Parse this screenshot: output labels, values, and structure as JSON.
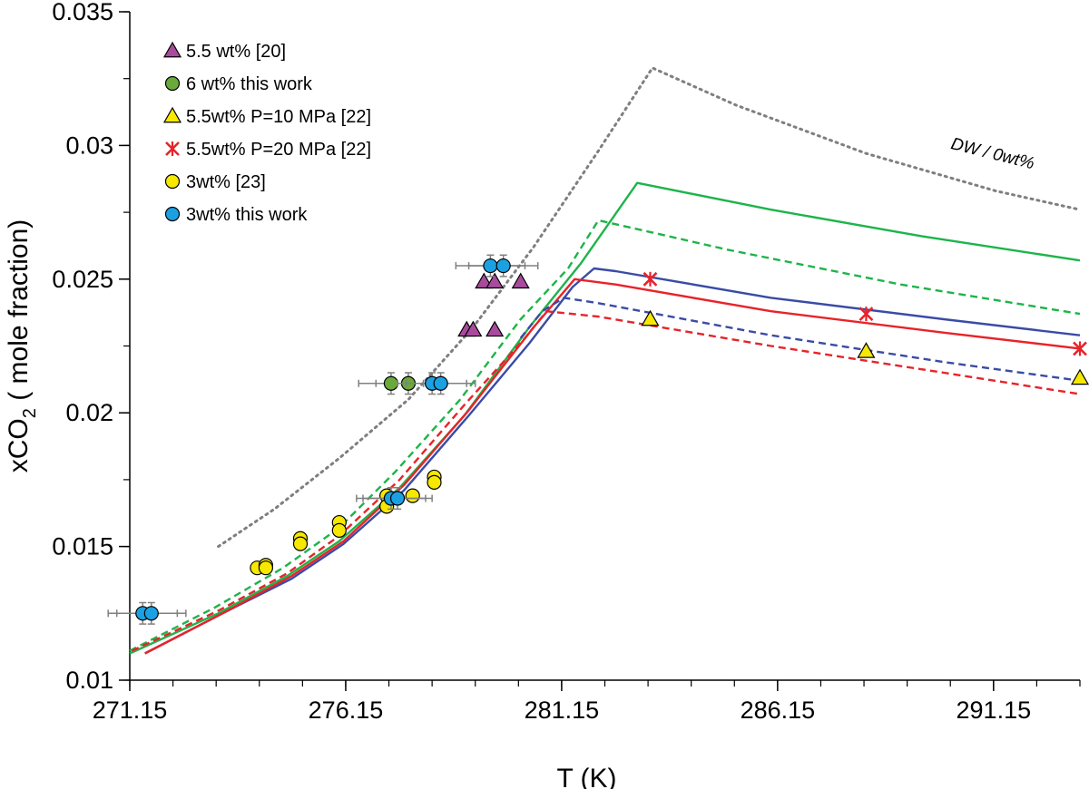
{
  "chart_data": {
    "type": "scatter",
    "xlabel": "T (K)",
    "ylabel_main": "xCO",
    "ylabel_sub": "2",
    "ylabel_rest": " ( mole fraction)",
    "xlim": [
      271.15,
      293.15
    ],
    "ylim": [
      0.01,
      0.035
    ],
    "x_ticks": [
      271.15,
      276.15,
      281.15,
      286.15,
      291.15
    ],
    "x_tick_labels": [
      "271.15",
      "276.15",
      "281.15",
      "286.15",
      "291.15"
    ],
    "x_minor_step": 1,
    "y_ticks": [
      0.01,
      0.015,
      0.02,
      0.025,
      0.03,
      0.035
    ],
    "y_tick_labels": [
      "0.01",
      "0.015",
      "0.02",
      "0.025",
      "0.03",
      "0.035"
    ],
    "y_minor_step": 0.0025,
    "grid": false,
    "legend_position": "top-left",
    "annotation": {
      "text": "DW / 0wt%",
      "x": 291.1,
      "y": 0.0295
    },
    "markers": [
      {
        "name": "5.5 wt% [20]",
        "shape": "triangle",
        "color": "#a84b9c",
        "points": [
          [
            278.95,
            0.0231
          ],
          [
            279.1,
            0.0231
          ],
          [
            279.6,
            0.0231
          ],
          [
            279.35,
            0.0249
          ],
          [
            279.6,
            0.0249
          ],
          [
            280.2,
            0.0249
          ]
        ]
      },
      {
        "name": "6 wt% this work",
        "shape": "circle",
        "color": "#6aaa3a",
        "points": [
          [
            277.2,
            0.0211
          ],
          [
            277.6,
            0.0211
          ]
        ],
        "x_err": 0.75,
        "y_err": 0.0004
      },
      {
        "name": "5.5wt% P=10 MPa [22]",
        "shape": "triangle",
        "color": "#f6e800",
        "points": [
          [
            283.2,
            0.0235
          ],
          [
            288.2,
            0.0223
          ],
          [
            293.15,
            0.0213
          ]
        ]
      },
      {
        "name": "5.5wt% P=20 MPa [22]",
        "shape": "cross",
        "color": "#e8232a",
        "points": [
          [
            283.2,
            0.025
          ],
          [
            288.2,
            0.0237
          ],
          [
            293.15,
            0.0224
          ]
        ]
      },
      {
        "name": "3wt% [23]",
        "shape": "circle",
        "color": "#f6e800",
        "points": [
          [
            274.1,
            0.0142
          ],
          [
            274.3,
            0.0143
          ],
          [
            274.3,
            0.0142
          ],
          [
            275.1,
            0.0153
          ],
          [
            275.1,
            0.0151
          ],
          [
            276.0,
            0.0159
          ],
          [
            276.0,
            0.0156
          ],
          [
            277.1,
            0.0169
          ],
          [
            277.1,
            0.0165
          ],
          [
            277.7,
            0.0169
          ],
          [
            278.2,
            0.0176
          ],
          [
            278.2,
            0.0174
          ]
        ]
      },
      {
        "name": "3wt% this work",
        "shape": "circle",
        "color": "#1ba1e2",
        "points": [
          [
            271.45,
            0.0125
          ],
          [
            271.65,
            0.0125
          ],
          [
            278.15,
            0.0211
          ],
          [
            278.35,
            0.0211
          ],
          [
            277.2,
            0.0168
          ],
          [
            277.35,
            0.0168
          ],
          [
            279.5,
            0.0255
          ],
          [
            279.8,
            0.0255
          ]
        ],
        "x_err": 0.8,
        "y_err": 0.0004
      }
    ],
    "curves": [
      {
        "name": "DW / 0wt%",
        "color": "#7f7f7f",
        "dash": "dotted",
        "points": [
          [
            273.2,
            0.015
          ],
          [
            274.5,
            0.0164
          ],
          [
            276.0,
            0.0183
          ],
          [
            277.6,
            0.0205
          ],
          [
            279.1,
            0.0232
          ],
          [
            280.5,
            0.0262
          ],
          [
            282.0,
            0.0298
          ],
          [
            283.25,
            0.0329
          ],
          [
            285.2,
            0.0315
          ],
          [
            288.2,
            0.0297
          ],
          [
            291.2,
            0.0283
          ],
          [
            293.15,
            0.0276
          ]
        ]
      },
      {
        "name": "",
        "color": "#1db44a",
        "dash": "solid",
        "points": [
          [
            271.15,
            0.011
          ],
          [
            273.2,
            0.0125
          ],
          [
            274.8,
            0.0139
          ],
          [
            276.0,
            0.0152
          ],
          [
            277.4,
            0.0172
          ],
          [
            278.9,
            0.0199
          ],
          [
            280.4,
            0.0232
          ],
          [
            281.6,
            0.0256
          ],
          [
            282.9,
            0.0286
          ],
          [
            286.0,
            0.0276
          ],
          [
            289.5,
            0.0266
          ],
          [
            293.15,
            0.0257
          ]
        ]
      },
      {
        "name": "",
        "color": "#1db44a",
        "dash": "dashed",
        "points": [
          [
            271.15,
            0.0111
          ],
          [
            273.1,
            0.0127
          ],
          [
            274.7,
            0.0142
          ],
          [
            276.0,
            0.0157
          ],
          [
            277.3,
            0.0178
          ],
          [
            278.8,
            0.0205
          ],
          [
            280.2,
            0.0235
          ],
          [
            281.3,
            0.0254
          ],
          [
            282.0,
            0.0272
          ],
          [
            285.0,
            0.0261
          ],
          [
            289.0,
            0.0248
          ],
          [
            293.15,
            0.0237
          ]
        ]
      },
      {
        "name": "",
        "color": "#3a4ba5",
        "dash": "solid",
        "points": [
          [
            271.5,
            0.011
          ],
          [
            273.3,
            0.0125
          ],
          [
            274.9,
            0.0138
          ],
          [
            276.1,
            0.0151
          ],
          [
            277.5,
            0.0171
          ],
          [
            279.0,
            0.0199
          ],
          [
            280.4,
            0.0226
          ],
          [
            281.4,
            0.0247
          ],
          [
            281.9,
            0.0254
          ],
          [
            282.4,
            0.0253
          ],
          [
            286.0,
            0.0243
          ],
          [
            290.0,
            0.0235
          ],
          [
            293.15,
            0.0229
          ]
        ]
      },
      {
        "name": "",
        "color": "#e8232a",
        "dash": "solid",
        "points": [
          [
            271.5,
            0.011
          ],
          [
            273.3,
            0.0125
          ],
          [
            274.9,
            0.0139
          ],
          [
            276.1,
            0.0152
          ],
          [
            277.5,
            0.0173
          ],
          [
            279.0,
            0.0201
          ],
          [
            280.5,
            0.0232
          ],
          [
            281.45,
            0.025
          ],
          [
            282.4,
            0.0248
          ],
          [
            286.0,
            0.0238
          ],
          [
            290.0,
            0.023
          ],
          [
            293.15,
            0.0224
          ]
        ]
      },
      {
        "name": "",
        "color": "#3a4ba5",
        "dash": "dashed",
        "points": [
          [
            280.2,
            0.0228
          ],
          [
            280.7,
            0.0238
          ],
          [
            281.2,
            0.0243
          ],
          [
            282.0,
            0.0241
          ],
          [
            286.0,
            0.0229
          ],
          [
            290.0,
            0.0219
          ],
          [
            293.15,
            0.0212
          ]
        ]
      },
      {
        "name": "",
        "color": "#e8232a",
        "dash": "dashed",
        "points": [
          [
            271.2,
            0.0111
          ],
          [
            273.2,
            0.0126
          ],
          [
            274.8,
            0.014
          ],
          [
            276.0,
            0.0154
          ],
          [
            277.4,
            0.0175
          ],
          [
            278.9,
            0.0203
          ],
          [
            280.3,
            0.0228
          ],
          [
            280.8,
            0.0238
          ],
          [
            282.0,
            0.0236
          ],
          [
            286.0,
            0.0225
          ],
          [
            290.0,
            0.0215
          ],
          [
            293.15,
            0.0207
          ]
        ]
      }
    ]
  }
}
